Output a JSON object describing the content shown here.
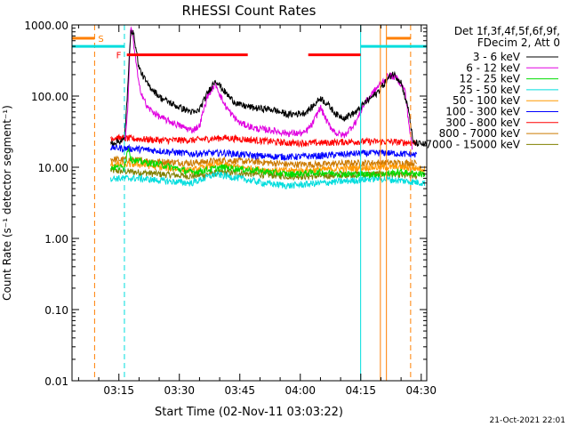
{
  "chart_data": {
    "type": "line",
    "title": "RHESSI Count Rates",
    "xlabel": "Start Time (02-Nov-11 03:03:22)",
    "ylabel": "Count Rate (s⁻¹ detector segment⁻¹)",
    "xlim_minutes": [
      0,
      88
    ],
    "ylim": [
      0.01,
      1000
    ],
    "yscale": "log",
    "x_ticks": [
      {
        "min": 11.63,
        "label": "03:15"
      },
      {
        "min": 26.63,
        "label": "03:30"
      },
      {
        "min": 41.63,
        "label": "03:45"
      },
      {
        "min": 56.63,
        "label": "04:00"
      },
      {
        "min": 71.63,
        "label": "04:15"
      },
      {
        "min": 86.63,
        "label": "04:30"
      }
    ],
    "y_ticks": [
      {
        "value": 1000,
        "label": "1000.00"
      },
      {
        "value": 100,
        "label": "100.00"
      },
      {
        "value": 10,
        "label": "10.00"
      },
      {
        "value": 1,
        "label": "1.00"
      },
      {
        "value": 0.1,
        "label": "0.10"
      },
      {
        "value": 0.01,
        "label": "0.01"
      }
    ],
    "legend_header": [
      "Det 1f,3f,4f,5f,6f,9f,",
      "FDecim 2, Att 0"
    ],
    "legend_placement": "right",
    "series": [
      {
        "name": "3 - 6 keV",
        "color": "#000000",
        "points": [
          [
            9.6,
            22
          ],
          [
            13,
            24
          ],
          [
            13.8,
            120
          ],
          [
            14.6,
            900
          ],
          [
            15.4,
            700
          ],
          [
            16.6,
            250
          ],
          [
            18.6,
            150
          ],
          [
            22,
            95
          ],
          [
            26,
            72
          ],
          [
            29.6,
            60
          ],
          [
            30.6,
            58
          ],
          [
            31.6,
            65
          ],
          [
            33.6,
            110
          ],
          [
            35.6,
            170
          ],
          [
            37.6,
            120
          ],
          [
            39.6,
            90
          ],
          [
            41.6,
            75
          ],
          [
            45.6,
            68
          ],
          [
            49.6,
            65
          ],
          [
            53.6,
            55
          ],
          [
            57.6,
            58
          ],
          [
            59.6,
            70
          ],
          [
            61.6,
            95
          ],
          [
            63.6,
            75
          ],
          [
            65.6,
            55
          ],
          [
            67.6,
            50
          ],
          [
            70.6,
            60
          ],
          [
            72.6,
            80
          ],
          [
            75.6,
            110
          ],
          [
            78.6,
            180
          ],
          [
            79.6,
            210
          ],
          [
            81.6,
            160
          ],
          [
            83.6,
            60
          ],
          [
            84.6,
            22
          ],
          [
            90.6,
            20
          ]
        ]
      },
      {
        "name": "6 - 12 keV",
        "color": "#e000e0",
        "points": [
          [
            13.2,
            25
          ],
          [
            13.8,
            60
          ],
          [
            14.6,
            1000
          ],
          [
            15.4,
            500
          ],
          [
            16.6,
            140
          ],
          [
            18.6,
            70
          ],
          [
            22,
            50
          ],
          [
            26,
            40
          ],
          [
            29.6,
            33
          ],
          [
            31.6,
            38
          ],
          [
            33.6,
            100
          ],
          [
            35.6,
            150
          ],
          [
            37.6,
            80
          ],
          [
            39.6,
            55
          ],
          [
            41.6,
            42
          ],
          [
            45.6,
            35
          ],
          [
            49.6,
            33
          ],
          [
            53.6,
            30
          ],
          [
            57.6,
            30
          ],
          [
            59.6,
            40
          ],
          [
            61.6,
            70
          ],
          [
            63.6,
            40
          ],
          [
            65.6,
            30
          ],
          [
            67.6,
            28
          ],
          [
            70.6,
            45
          ],
          [
            72.6,
            80
          ],
          [
            75.6,
            130
          ],
          [
            78.6,
            200
          ],
          [
            80.6,
            180
          ],
          [
            82.6,
            120
          ],
          [
            83.6,
            40
          ],
          [
            84.6,
            15
          ]
        ]
      },
      {
        "name": "12 - 25 keV",
        "color": "#00dd00",
        "points": [
          [
            9.6,
            10
          ],
          [
            13,
            10
          ],
          [
            14,
            20
          ],
          [
            14.6,
            13
          ],
          [
            16.6,
            12
          ],
          [
            22,
            11
          ],
          [
            29.6,
            8.5
          ],
          [
            37.6,
            10
          ],
          [
            45.6,
            9
          ],
          [
            53.6,
            8
          ],
          [
            61.6,
            8.5
          ],
          [
            69.6,
            8
          ],
          [
            75.6,
            8
          ],
          [
            81.6,
            8.5
          ],
          [
            87.6,
            8
          ]
        ]
      },
      {
        "name": "25 - 50 keV",
        "color": "#00dddd",
        "points": [
          [
            9.6,
            7
          ],
          [
            16.6,
            7
          ],
          [
            22,
            6.5
          ],
          [
            29.6,
            6
          ],
          [
            35.6,
            8
          ],
          [
            41.6,
            7
          ],
          [
            47.6,
            6
          ],
          [
            53.6,
            5.5
          ],
          [
            61.6,
            6
          ],
          [
            69.6,
            6.5
          ],
          [
            75.6,
            7
          ],
          [
            81.6,
            6.5
          ],
          [
            87.6,
            6
          ]
        ]
      },
      {
        "name": "50 - 100 keV",
        "color": "#ff9900",
        "points": [
          [
            9.6,
            11
          ],
          [
            16.6,
            11
          ],
          [
            22,
            10
          ],
          [
            29.6,
            9
          ],
          [
            35.6,
            11
          ],
          [
            41.6,
            10
          ],
          [
            49.6,
            9
          ],
          [
            57.6,
            9
          ],
          [
            65.6,
            9.5
          ],
          [
            73.6,
            10
          ],
          [
            81.6,
            10
          ],
          [
            87.6,
            9.5
          ]
        ]
      },
      {
        "name": "100 - 300 keV",
        "color": "#0000ff",
        "points": [
          [
            9.6,
            19
          ],
          [
            16.6,
            18
          ],
          [
            22,
            17
          ],
          [
            29.6,
            15.5
          ],
          [
            37.6,
            16
          ],
          [
            45.6,
            14.5
          ],
          [
            53.6,
            14
          ],
          [
            61.6,
            14.5
          ],
          [
            69.6,
            15.5
          ],
          [
            77.6,
            16
          ],
          [
            85.6,
            15
          ]
        ]
      },
      {
        "name": "300 - 800 keV",
        "color": "#ff0000",
        "points": [
          [
            9.6,
            26
          ],
          [
            16.6,
            25
          ],
          [
            22,
            24
          ],
          [
            29.6,
            24
          ],
          [
            37.6,
            26
          ],
          [
            45.6,
            24
          ],
          [
            53.6,
            22
          ],
          [
            61.6,
            22
          ],
          [
            69.6,
            23
          ],
          [
            77.6,
            23
          ],
          [
            85.6,
            22
          ]
        ]
      },
      {
        "name": "800 - 7000 keV",
        "color": "#cc7a00",
        "points": [
          [
            9.6,
            13
          ],
          [
            16.6,
            12.5
          ],
          [
            22,
            12
          ],
          [
            29.6,
            11.5
          ],
          [
            37.6,
            12.5
          ],
          [
            45.6,
            12
          ],
          [
            53.6,
            11
          ],
          [
            61.6,
            11
          ],
          [
            69.6,
            11.5
          ],
          [
            77.6,
            11.5
          ],
          [
            85.6,
            11.5
          ]
        ]
      },
      {
        "name": "7000 - 15000 keV",
        "color": "#808000",
        "points": [
          [
            9.6,
            9
          ],
          [
            16.6,
            8.5
          ],
          [
            22,
            8
          ],
          [
            29.6,
            7.5
          ],
          [
            37.6,
            8.5
          ],
          [
            45.6,
            8
          ],
          [
            53.6,
            7.5
          ],
          [
            61.6,
            7.5
          ],
          [
            69.6,
            8
          ],
          [
            77.6,
            8
          ],
          [
            85.6,
            7.5
          ]
        ]
      }
    ],
    "state_bars": [
      {
        "label": "S",
        "color": "#ff7f00",
        "min": 0,
        "max": 5.6,
        "value": 650
      },
      {
        "label": "F",
        "color": "#ff0000",
        "min": 13.6,
        "max": 43.6,
        "value": 380
      },
      {
        "label": "",
        "color": "#ff0000",
        "min": 58.6,
        "max": 71.6,
        "value": 380
      },
      {
        "label": "",
        "color": "#00dddd",
        "min": 0,
        "max": 13,
        "value": 500
      },
      {
        "label": "",
        "color": "#00dddd",
        "min": 71.6,
        "max": 88,
        "value": 500
      },
      {
        "label": "",
        "color": "#ff7f00",
        "min": 78,
        "max": 84,
        "value": 650
      }
    ],
    "vertical_markers": [
      {
        "min": 5.6,
        "color": "#ff7f00",
        "style": "dashed"
      },
      {
        "min": 13,
        "color": "#00dddd",
        "style": "dashed"
      },
      {
        "min": 71.6,
        "color": "#00dddd",
        "style": "solid"
      },
      {
        "min": 76.5,
        "color": "#ff7f00",
        "style": "solid"
      },
      {
        "min": 78,
        "color": "#ff7f00",
        "style": "solid"
      },
      {
        "min": 84,
        "color": "#ff7f00",
        "style": "dashed"
      }
    ]
  },
  "footer_date": "21-Oct-2021 22:01"
}
